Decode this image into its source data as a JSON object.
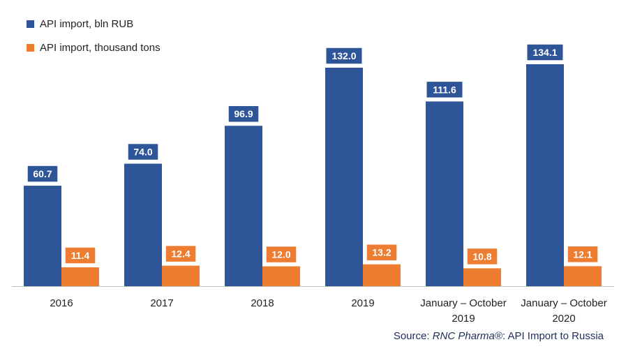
{
  "chart_data": {
    "type": "bar",
    "categories": [
      [
        "2016"
      ],
      [
        "2017"
      ],
      [
        "2018"
      ],
      [
        "2019"
      ],
      [
        "January – October",
        "2019"
      ],
      [
        "January – October",
        "2020"
      ]
    ],
    "series": [
      {
        "name": "API import, bln RUB",
        "color": "#2e5597",
        "values": [
          60.7,
          74.0,
          96.9,
          132.0,
          111.6,
          134.1
        ],
        "labels": [
          "60.7",
          "74.0",
          "96.9",
          "132.0",
          "111.6",
          "134.1"
        ]
      },
      {
        "name": "API import, thousand tons",
        "color": "#ed7d31",
        "values": [
          11.4,
          12.4,
          12.0,
          13.2,
          10.8,
          12.1
        ],
        "labels": [
          "11.4",
          "12.4",
          "12.0",
          "13.2",
          "10.8",
          "12.1"
        ]
      }
    ],
    "ylim": [
      0,
      134.1
    ],
    "legend_position": "top-left",
    "grid": false
  },
  "source": {
    "prefix": "Source: ",
    "brand": "RNC Pharma®",
    "suffix": ": API Import to Russia"
  }
}
